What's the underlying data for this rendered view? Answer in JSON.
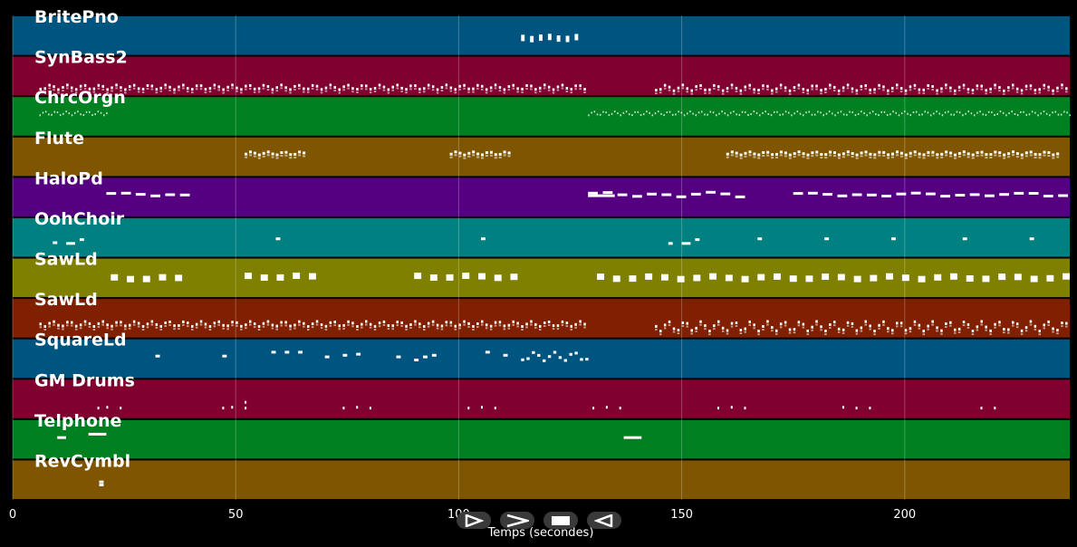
{
  "chart_data": {
    "type": "piano-roll",
    "xlabel": "Temps (secondes)",
    "xlim": [
      0,
      237
    ],
    "xticks": [
      0,
      50,
      100,
      150,
      200
    ],
    "grid": true,
    "tracks": [
      {
        "name": "BritePno",
        "color": "#005580",
        "segments": [
          [
            114,
            128,
            0.45,
            0.55,
            0,
            0.8,
            1.2
          ]
        ],
        "extra": []
      },
      {
        "name": "SynBass2",
        "color": "#800030",
        "segments": [
          [
            6,
            129,
            0.7,
            0.82,
            4,
            0.5,
            0.5
          ],
          [
            144,
            237,
            0.7,
            0.85,
            4,
            0.5,
            0.5
          ]
        ],
        "extra": []
      },
      {
        "name": "ChrcOrgn",
        "color": "#008020",
        "segments": [
          [
            6,
            21,
            0.35,
            0.45,
            6,
            0.3,
            0.35
          ],
          [
            129,
            237,
            0.35,
            0.45,
            6,
            0.3,
            0.35
          ]
        ],
        "extra": []
      },
      {
        "name": "Flute",
        "color": "#805500",
        "segments": [
          [
            52,
            66,
            0.34,
            0.42,
            4,
            0.6,
            0.4
          ],
          [
            98,
            112,
            0.34,
            0.42,
            4,
            0.6,
            0.4
          ],
          [
            160,
            235,
            0.34,
            0.42,
            4,
            0.6,
            0.4
          ]
        ],
        "extra": []
      },
      {
        "name": "HaloPd",
        "color": "#550080",
        "segments": [
          [
            21,
            40,
            0.38,
            0.42,
            1,
            2.2,
            1.1
          ],
          [
            129,
            164,
            0.36,
            0.44,
            1,
            2.2,
            1.1
          ],
          [
            175,
            237,
            0.38,
            0.42,
            1,
            2.2,
            1.1
          ]
        ],
        "extra": [
          [
            129,
            135,
            0.43
          ]
        ]
      },
      {
        "name": "OohChoir",
        "color": "#008080",
        "segments": [],
        "extra": [
          [
            9,
            10,
            0.6
          ],
          [
            12,
            14,
            0.62
          ],
          [
            15,
            16,
            0.52
          ],
          [
            59,
            60,
            0.5
          ],
          [
            105,
            106,
            0.5
          ],
          [
            147,
            148,
            0.62
          ],
          [
            150,
            152,
            0.62
          ],
          [
            153,
            154,
            0.52
          ],
          [
            167,
            168,
            0.5
          ],
          [
            182,
            183,
            0.5
          ],
          [
            197,
            198,
            0.5
          ],
          [
            213,
            214,
            0.5
          ],
          [
            228,
            229,
            0.5
          ]
        ]
      },
      {
        "name": "SawLd",
        "color": "#808000",
        "segments": [
          [
            22,
            37,
            0.4,
            0.5,
            0,
            1.6,
            2.0
          ],
          [
            52,
            67,
            0.36,
            0.46,
            0,
            1.6,
            2.0
          ],
          [
            90,
            113,
            0.36,
            0.46,
            0,
            1.6,
            2.0
          ],
          [
            131,
            237,
            0.38,
            0.5,
            0,
            1.6,
            2.0
          ]
        ],
        "extra": []
      },
      {
        "name": "SawLd",
        "color": "#802000",
        "segments": [
          [
            6,
            129,
            0.55,
            0.68,
            5,
            0.5,
            0.5
          ],
          [
            144,
            237,
            0.55,
            0.8,
            5,
            0.5,
            0.5
          ]
        ],
        "extra": []
      },
      {
        "name": "SquareLd",
        "color": "#005580",
        "segments": [
          [
            114,
            129,
            0.3,
            0.52,
            3,
            0.7,
            0.5
          ]
        ],
        "extra": [
          [
            32,
            33,
            0.4
          ],
          [
            47,
            48,
            0.4
          ],
          [
            58,
            59,
            0.3
          ],
          [
            61,
            62,
            0.3
          ],
          [
            64,
            65,
            0.3
          ],
          [
            70,
            71,
            0.42
          ],
          [
            74,
            75,
            0.38
          ],
          [
            77,
            78,
            0.35
          ],
          [
            86,
            87,
            0.42
          ],
          [
            90,
            91,
            0.5
          ],
          [
            92,
            93,
            0.42
          ],
          [
            94,
            95,
            0.38
          ],
          [
            106,
            107,
            0.3
          ],
          [
            110,
            111,
            0.38
          ]
        ]
      },
      {
        "name": "GM Drums",
        "color": "#800030",
        "segments": [],
        "extra": [
          [
            19,
            19.4,
            0.7
          ],
          [
            21,
            21.4,
            0.68
          ],
          [
            24,
            24.4,
            0.7
          ],
          [
            47,
            47.4,
            0.7
          ],
          [
            49,
            49.4,
            0.68
          ],
          [
            52,
            52.4,
            0.55
          ],
          [
            52,
            52.4,
            0.7
          ],
          [
            74,
            74.4,
            0.7
          ],
          [
            77,
            77.4,
            0.68
          ],
          [
            80,
            80.4,
            0.7
          ],
          [
            102,
            102.4,
            0.7
          ],
          [
            105,
            105.4,
            0.68
          ],
          [
            108,
            108.4,
            0.7
          ],
          [
            130,
            130.4,
            0.7
          ],
          [
            133,
            133.4,
            0.68
          ],
          [
            136,
            136.4,
            0.7
          ],
          [
            158,
            158.4,
            0.7
          ],
          [
            161,
            161.4,
            0.68
          ],
          [
            164,
            164.4,
            0.7
          ],
          [
            186,
            186.4,
            0.68
          ],
          [
            189,
            189.4,
            0.7
          ],
          [
            192,
            192.4,
            0.7
          ],
          [
            217,
            217.4,
            0.7
          ],
          [
            220,
            220.4,
            0.7
          ]
        ]
      },
      {
        "name": "Telphone",
        "color": "#008020",
        "segments": [],
        "extra": [
          [
            10,
            12,
            0.42
          ],
          [
            17,
            21,
            0.33
          ],
          [
            137,
            141,
            0.42
          ]
        ]
      },
      {
        "name": "RevCymbl",
        "color": "#805500",
        "segments": [],
        "extra": [
          [
            19.4,
            20.4,
            0.52
          ],
          [
            19.4,
            20.4,
            0.6
          ]
        ]
      }
    ]
  }
}
